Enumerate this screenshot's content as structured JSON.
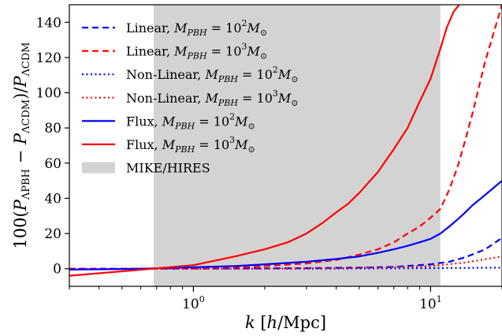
{
  "chart_data": {
    "type": "line",
    "xscale": "log",
    "xlim": [
      0.3,
      20
    ],
    "ylim": [
      -10,
      150
    ],
    "xlabel": {
      "var": "k",
      "rest": " [",
      "h": "h",
      "unit": "/Mpc]"
    },
    "ylabel": "100(PΛPBH − PΛCDM)/PΛCDM",
    "xticks": [
      {
        "value": 1,
        "base": "10",
        "exp": "0"
      },
      {
        "value": 10,
        "base": "10",
        "exp": "1"
      }
    ],
    "yticks": [
      0,
      20,
      40,
      60,
      80,
      100,
      120,
      140
    ],
    "grid": false,
    "legend_position": "top-left",
    "shaded_region": {
      "name": "MIKE/HIRES",
      "x": [
        0.68,
        11.0
      ],
      "color": "#d3d3d3"
    },
    "series": [
      {
        "name": "Linear, M_PBH = 10^2 M_sun",
        "legend": {
          "prefix": "Linear, ",
          "exp": "2"
        },
        "color": "#0000ff",
        "style": "dashed",
        "x": [
          0.3,
          0.5,
          0.7,
          1,
          2,
          3,
          5,
          7,
          10,
          12,
          14,
          17,
          20
        ],
        "y": [
          0,
          0,
          0.1,
          0.1,
          0.2,
          0.3,
          0.6,
          1,
          2.5,
          4,
          6.5,
          11,
          17.5
        ]
      },
      {
        "name": "Linear, M_PBH = 10^3 M_sun",
        "legend": {
          "prefix": "Linear, ",
          "exp": "3"
        },
        "color": "#ff0000",
        "style": "dashed",
        "x": [
          0.3,
          0.5,
          0.7,
          1,
          2,
          3,
          4,
          5,
          6,
          7,
          8,
          9,
          10,
          11,
          12,
          13,
          14,
          15,
          17,
          20
        ],
        "y": [
          0,
          0,
          0,
          0.2,
          1.5,
          3,
          5,
          8,
          11,
          15,
          20,
          24,
          29,
          34,
          45,
          58,
          73,
          88,
          118,
          150
        ]
      },
      {
        "name": "Non-Linear, M_PBH = 10^2 M_sun",
        "legend": {
          "prefix": "Non-Linear, ",
          "exp": "2"
        },
        "color": "#0000ff",
        "style": "dotted",
        "x": [
          0.3,
          1,
          3,
          10,
          20
        ],
        "y": [
          -0.2,
          0,
          0,
          0.3,
          0.6
        ]
      },
      {
        "name": "Non-Linear, M_PBH = 10^3 M_sun",
        "legend": {
          "prefix": "Non-Linear, ",
          "exp": "3"
        },
        "color": "#ff0000",
        "style": "dotted",
        "x": [
          0.3,
          1,
          3,
          8,
          10,
          14,
          20
        ],
        "y": [
          -0.3,
          0,
          0.2,
          1,
          1.5,
          3.5,
          7
        ]
      },
      {
        "name": "Flux, M_PBH = 10^2 M_sun",
        "legend": {
          "prefix": "Flux, ",
          "exp": "2"
        },
        "color": "#0000ff",
        "style": "solid",
        "x": [
          0.3,
          0.5,
          0.7,
          1,
          1.5,
          2,
          3,
          4,
          5,
          6,
          7,
          8,
          9,
          10,
          11,
          12,
          13,
          14,
          15,
          17,
          20
        ],
        "y": [
          -0.5,
          -0.2,
          0.2,
          0.8,
          1.5,
          2.5,
          4,
          5.5,
          7,
          9,
          11,
          13,
          15,
          17,
          20,
          24,
          28,
          32,
          36,
          42,
          50
        ]
      },
      {
        "name": "Flux, M_PBH = 10^3 M_sun",
        "legend": {
          "prefix": "Flux, ",
          "exp": "3"
        },
        "color": "#ff0000",
        "style": "solid",
        "x": [
          0.3,
          0.5,
          0.7,
          1,
          1.5,
          2,
          2.5,
          3,
          3.5,
          4,
          4.5,
          5,
          6,
          7,
          8,
          9,
          10,
          11,
          11.7,
          12.5,
          13.2
        ],
        "y": [
          -4,
          -1.5,
          0.2,
          2,
          7,
          11,
          15,
          20,
          26,
          32,
          37,
          43,
          55,
          68,
          80,
          95,
          108,
          125,
          137,
          146,
          150
        ]
      }
    ]
  }
}
